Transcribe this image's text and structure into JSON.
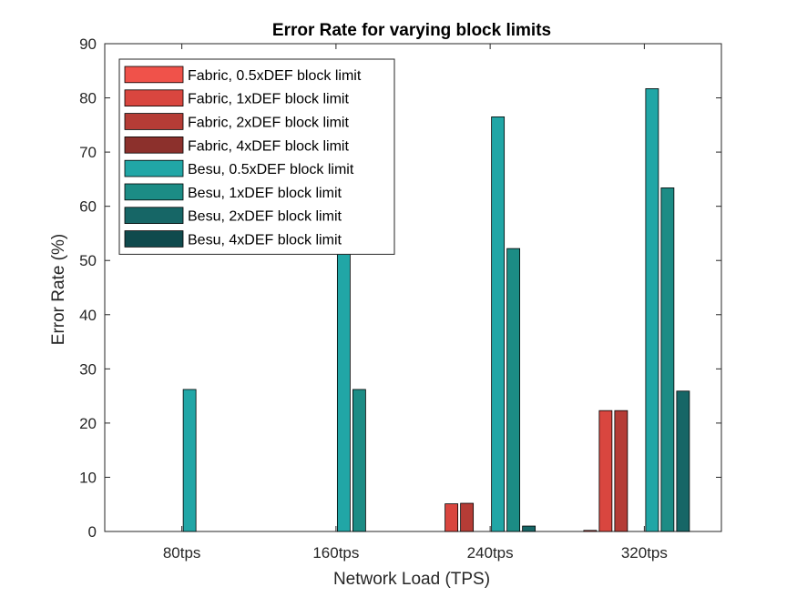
{
  "chart_data": {
    "type": "bar",
    "title": "Error Rate for varying block limits",
    "xlabel": "Network Load (TPS)",
    "ylabel": "Error Rate (%)",
    "categories": [
      "80tps",
      "160tps",
      "240tps",
      "320tps"
    ],
    "ylim": [
      0,
      90
    ],
    "yticks": [
      0,
      10,
      20,
      30,
      40,
      50,
      60,
      70,
      80,
      90
    ],
    "grid": false,
    "legend_position": "top-left",
    "series": [
      {
        "name": "Fabric, 0.5xDEF block limit",
        "color": "#F0524A",
        "values": [
          0,
          0,
          0,
          0.2
        ]
      },
      {
        "name": "Fabric, 1xDEF block limit",
        "color": "#D9463F",
        "values": [
          0,
          0,
          5.1,
          22.3
        ]
      },
      {
        "name": "Fabric, 2xDEF block limit",
        "color": "#B53C36",
        "values": [
          0,
          0,
          5.2,
          22.3
        ]
      },
      {
        "name": "Fabric, 4xDEF block limit",
        "color": "#8C302C",
        "values": [
          0,
          0,
          0,
          0
        ]
      },
      {
        "name": "Besu, 0.5xDEF block limit",
        "color": "#21A6A6",
        "values": [
          26.2,
          52.0,
          76.5,
          81.7
        ]
      },
      {
        "name": "Besu, 1xDEF block limit",
        "color": "#1C8C85",
        "values": [
          0,
          26.2,
          52.2,
          63.4
        ]
      },
      {
        "name": "Besu, 2xDEF block limit",
        "color": "#166666",
        "values": [
          0,
          0,
          1.0,
          25.9
        ]
      },
      {
        "name": "Besu, 4xDEF block limit",
        "color": "#0F4A4D",
        "values": [
          0,
          0,
          0,
          0
        ]
      }
    ]
  }
}
